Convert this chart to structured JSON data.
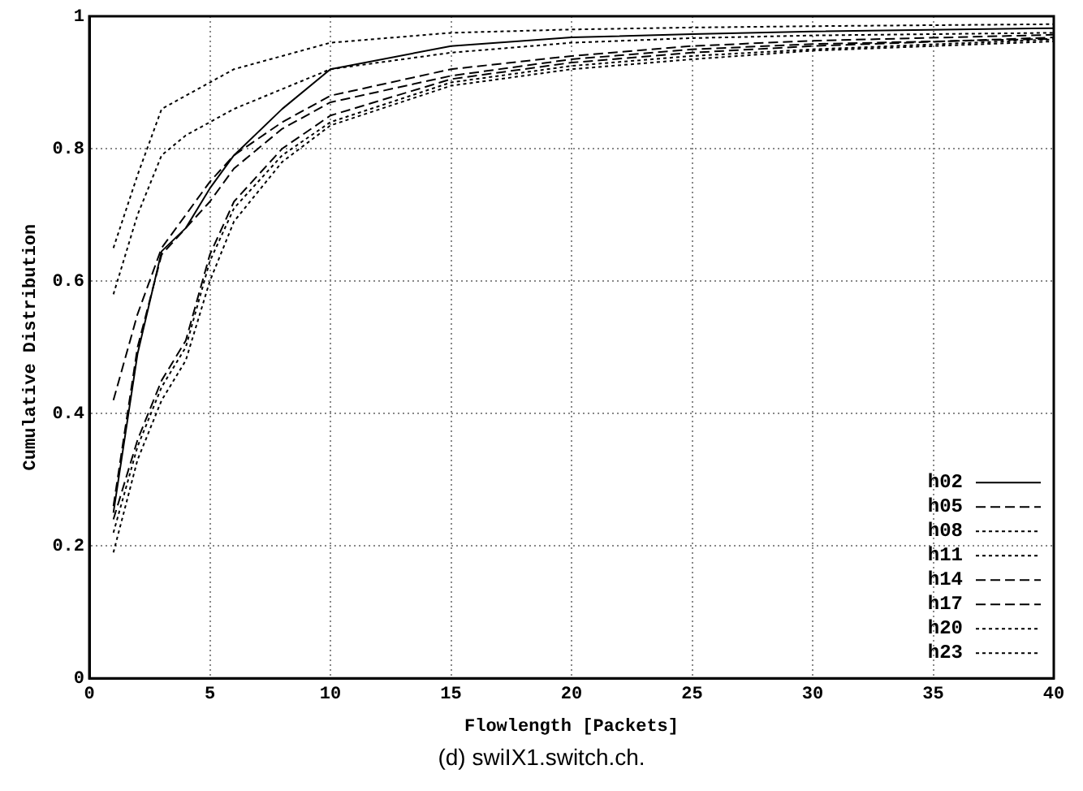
{
  "chart_data": {
    "type": "line",
    "xlabel": "Flowlength [Packets]",
    "ylabel": "Cumulative Distribution",
    "x": [
      1,
      2,
      3,
      4,
      5,
      6,
      8,
      10,
      15,
      20,
      25,
      30,
      40
    ],
    "xlim": [
      0,
      40
    ],
    "xticks": [
      0,
      5,
      10,
      15,
      20,
      25,
      30,
      35,
      40
    ],
    "ylim": [
      0,
      1
    ],
    "yticks": [
      0,
      0.2,
      0.4,
      0.6,
      0.8,
      1
    ],
    "grid": true,
    "legend": "bottom right",
    "marker": "none",
    "series": [
      {
        "name": "h02",
        "color": "#000000",
        "line_style": "solid",
        "values": [
          0.25,
          0.49,
          0.645,
          0.68,
          0.74,
          0.79,
          0.86,
          0.92,
          0.955,
          0.968,
          0.973,
          0.977,
          0.982
        ]
      },
      {
        "name": "h05",
        "color": "#000000",
        "line_style": "dashed",
        "values": [
          0.24,
          0.36,
          0.45,
          0.51,
          0.64,
          0.72,
          0.8,
          0.85,
          0.905,
          0.93,
          0.945,
          0.955,
          0.968
        ]
      },
      {
        "name": "h08",
        "color": "#000000",
        "line_style": "dotted",
        "values": [
          0.65,
          0.76,
          0.86,
          0.88,
          0.9,
          0.92,
          0.94,
          0.96,
          0.975,
          0.98,
          0.983,
          0.985,
          0.988
        ]
      },
      {
        "name": "h11",
        "color": "#000000",
        "line_style": "dotted",
        "values": [
          0.22,
          0.35,
          0.44,
          0.5,
          0.63,
          0.71,
          0.79,
          0.84,
          0.9,
          0.925,
          0.94,
          0.95,
          0.965
        ]
      },
      {
        "name": "h14",
        "color": "#000000",
        "line_style": "dashed",
        "values": [
          0.42,
          0.55,
          0.65,
          0.7,
          0.75,
          0.79,
          0.84,
          0.88,
          0.92,
          0.94,
          0.955,
          0.963,
          0.972
        ]
      },
      {
        "name": "h17",
        "color": "#000000",
        "line_style": "dashed",
        "values": [
          0.26,
          0.5,
          0.64,
          0.68,
          0.72,
          0.77,
          0.83,
          0.87,
          0.91,
          0.935,
          0.95,
          0.958,
          0.966
        ]
      },
      {
        "name": "h20",
        "color": "#000000",
        "line_style": "dotted",
        "values": [
          0.58,
          0.7,
          0.79,
          0.82,
          0.84,
          0.86,
          0.89,
          0.92,
          0.945,
          0.96,
          0.967,
          0.971,
          0.975
        ]
      },
      {
        "name": "h23",
        "color": "#000000",
        "line_style": "dotted",
        "values": [
          0.19,
          0.33,
          0.42,
          0.48,
          0.6,
          0.69,
          0.78,
          0.835,
          0.895,
          0.92,
          0.935,
          0.948,
          0.962
        ]
      }
    ],
    "annotations": [
      "(d) swiIX1.switch.ch."
    ]
  }
}
